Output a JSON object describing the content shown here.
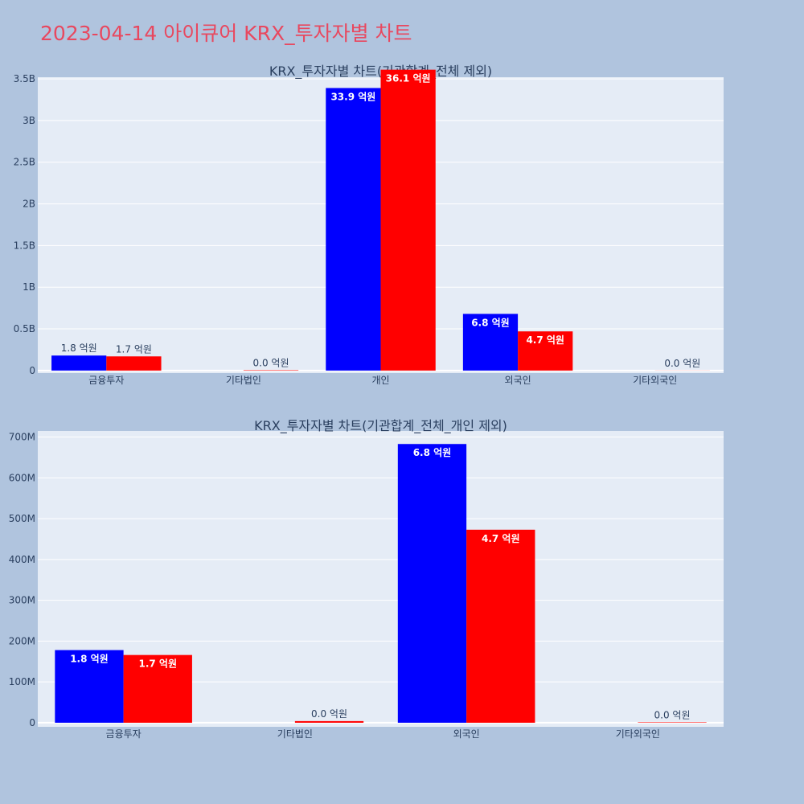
{
  "page": {
    "title": "2023-04-14 아이큐어 KRX_투자자별 차트"
  },
  "colors": {
    "background": "#b0c4de",
    "plot_bg": "#e5ecf6",
    "title": "#e8485f",
    "series_1": "#0000ff",
    "series_2": "#ff0000"
  },
  "chart_data": [
    {
      "type": "bar",
      "title": "KRX_투자자별 차트(기관합계_전체 제외)",
      "categories": [
        "금융투자",
        "기타법인",
        "개인",
        "외국인",
        "기타외국인"
      ],
      "series": [
        {
          "color": "#0000ff",
          "values": [
            180000000,
            0,
            3390000000,
            680000000,
            0
          ],
          "labels": [
            "1.8 억원",
            "",
            "33.9 억원",
            "6.8 억원",
            ""
          ]
        },
        {
          "color": "#ff0000",
          "values": [
            170000000,
            5000000,
            3610000000,
            470000000,
            1000000
          ],
          "labels": [
            "1.7 억원",
            "0.0 억원",
            "36.1 억원",
            "4.7 억원",
            "0.0 억원"
          ]
        }
      ],
      "yticks": [
        0,
        500000000,
        1000000000,
        1500000000,
        2000000000,
        2500000000,
        3000000000,
        3500000000
      ],
      "ytick_labels": [
        "0",
        "0.5B",
        "1B",
        "1.5B",
        "2B",
        "2.5B",
        "3B",
        "3.5B"
      ],
      "ylim": [
        -30000000,
        3520000000
      ],
      "grid": true,
      "barmode": "group"
    },
    {
      "type": "bar",
      "title": "KRX_투자자별 차트(기관합계_전체_개인 제외)",
      "categories": [
        "금융투자",
        "기타법인",
        "외국인",
        "기타외국인"
      ],
      "series": [
        {
          "color": "#0000ff",
          "values": [
            178000000,
            0,
            683000000,
            0
          ],
          "labels": [
            "1.8 억원",
            "",
            "6.8 억원",
            ""
          ]
        },
        {
          "color": "#ff0000",
          "values": [
            166000000,
            4000000,
            473000000,
            1000000
          ],
          "labels": [
            "1.7 억원",
            "0.0 억원",
            "4.7 억원",
            "0.0 억원"
          ]
        }
      ],
      "yticks": [
        0,
        100000000,
        200000000,
        300000000,
        400000000,
        500000000,
        600000000,
        700000000
      ],
      "ytick_labels": [
        "0",
        "100M",
        "200M",
        "300M",
        "400M",
        "500M",
        "600M",
        "700M"
      ],
      "ylim": [
        -10000000,
        715000000
      ],
      "grid": true,
      "barmode": "group"
    }
  ]
}
